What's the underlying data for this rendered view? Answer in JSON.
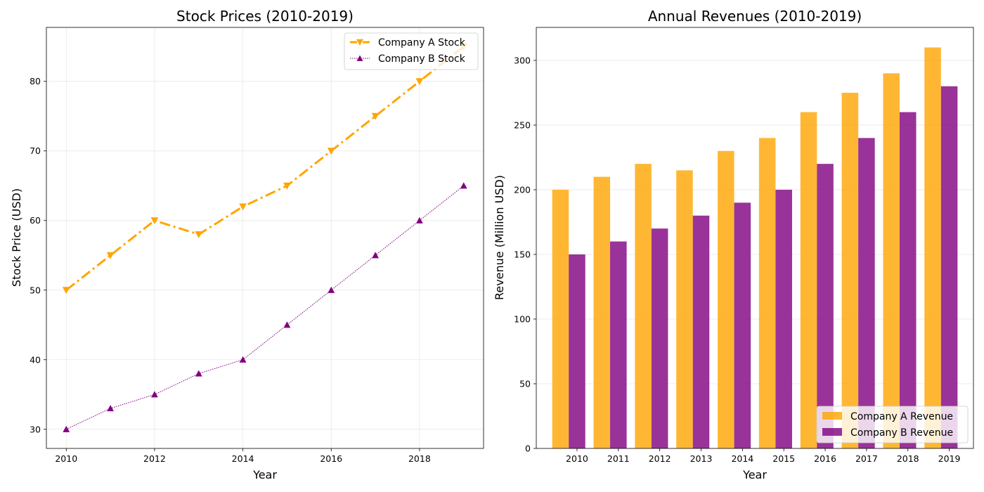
{
  "chart_data": [
    {
      "type": "line",
      "title": "Stock Prices (2010-2019)",
      "xlabel": "Year",
      "ylabel": "Stock Price (USD)",
      "x": [
        2010,
        2011,
        2012,
        2013,
        2014,
        2015,
        2016,
        2017,
        2018,
        2019
      ],
      "xlim": [
        2009.55,
        2019.45
      ],
      "ylim": [
        27.25,
        87.75
      ],
      "xticks": [
        "2010",
        "2012",
        "2014",
        "2016",
        "2018"
      ],
      "yticks": [
        "30",
        "40",
        "50",
        "60",
        "70",
        "80"
      ],
      "grid": true,
      "legend": "top-right",
      "series": [
        {
          "name": "Company A Stock",
          "values": [
            50,
            55,
            60,
            58,
            62,
            65,
            70,
            75,
            80,
            85
          ],
          "color": "#ffa500",
          "line_style": "dash-dot",
          "marker": "triangle-down"
        },
        {
          "name": "Company B Stock",
          "values": [
            30,
            33,
            35,
            38,
            40,
            45,
            50,
            55,
            60,
            65
          ],
          "color": "#800080",
          "line_style": "dotted",
          "marker": "triangle-up"
        }
      ]
    },
    {
      "type": "bar",
      "title": "Annual Revenues (2010-2019)",
      "xlabel": "Year",
      "ylabel": "Revenue (Million USD)",
      "categories": [
        "2010",
        "2011",
        "2012",
        "2013",
        "2014",
        "2015",
        "2016",
        "2017",
        "2018",
        "2019"
      ],
      "ylim": [
        0,
        325.5
      ],
      "yticks": [
        "0",
        "50",
        "100",
        "150",
        "200",
        "250",
        "300"
      ],
      "grid": true,
      "legend": "bottom-right",
      "series": [
        {
          "name": "Company A Revenue",
          "values": [
            200,
            210,
            220,
            215,
            230,
            240,
            260,
            275,
            290,
            310
          ],
          "color": "#ffa500"
        },
        {
          "name": "Company B Revenue",
          "values": [
            150,
            160,
            170,
            180,
            190,
            200,
            220,
            240,
            260,
            280
          ],
          "color": "#800080"
        }
      ]
    }
  ]
}
